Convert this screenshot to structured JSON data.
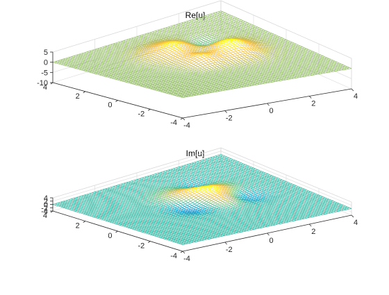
{
  "chart_data": [
    {
      "type": "surface",
      "title": "Re[u]",
      "xlabel": "",
      "ylabel": "",
      "zlabel": "",
      "xlim": [
        -4,
        4
      ],
      "ylim": [
        -4,
        4
      ],
      "zlim": [
        -10,
        5
      ],
      "x_ticks": [
        "-4",
        "-2",
        "0",
        "2",
        "4"
      ],
      "y_ticks": [
        "-4",
        "-2",
        "0",
        "2",
        "4"
      ],
      "z_ticks": [
        "5",
        "0",
        "-5",
        "-10"
      ],
      "grid": true,
      "colormap": "parula",
      "surface": {
        "baseline": 0,
        "bumps": [
          {
            "x": 1.3,
            "y": 0.2,
            "sigma": 0.8,
            "amplitude": 6
          },
          {
            "x": -0.2,
            "y": 1.3,
            "sigma": 0.8,
            "amplitude": 5
          },
          {
            "x": 0.5,
            "y": 0.6,
            "sigma": 0.55,
            "amplitude": -4
          },
          {
            "x": 1.3,
            "y": 1.5,
            "sigma": 0.5,
            "amplitude": -3
          },
          {
            "x": -0.3,
            "y": -0.4,
            "sigma": 0.5,
            "amplitude": 3
          }
        ]
      }
    },
    {
      "type": "surface",
      "title": "Im[u]",
      "xlabel": "",
      "ylabel": "",
      "zlabel": "",
      "xlim": [
        -4,
        4
      ],
      "ylim": [
        -4,
        4
      ],
      "zlim": [
        -4,
        4
      ],
      "x_ticks": [
        "-4",
        "-2",
        "0",
        "2",
        "4"
      ],
      "y_ticks": [
        "-4",
        "-2",
        "0",
        "2",
        "4"
      ],
      "z_ticks": [
        "4",
        "2",
        "0",
        "-2",
        "-4"
      ],
      "grid": true,
      "colormap": "parula",
      "surface": {
        "baseline": 0,
        "bumps": [
          {
            "x": 0.2,
            "y": 0.9,
            "sigma": 0.75,
            "amplitude": 3.5
          },
          {
            "x": 1.2,
            "y": 0.8,
            "sigma": 0.6,
            "amplitude": 2.5
          },
          {
            "x": 0.7,
            "y": -0.3,
            "sigma": 0.5,
            "amplitude": 2
          },
          {
            "x": -0.5,
            "y": 0.0,
            "sigma": 0.6,
            "amplitude": -2.5
          },
          {
            "x": 1.0,
            "y": 1.7,
            "sigma": 0.5,
            "amplitude": -2
          },
          {
            "x": 1.8,
            "y": -0.4,
            "sigma": 0.5,
            "amplitude": -1.5
          }
        ]
      }
    }
  ]
}
